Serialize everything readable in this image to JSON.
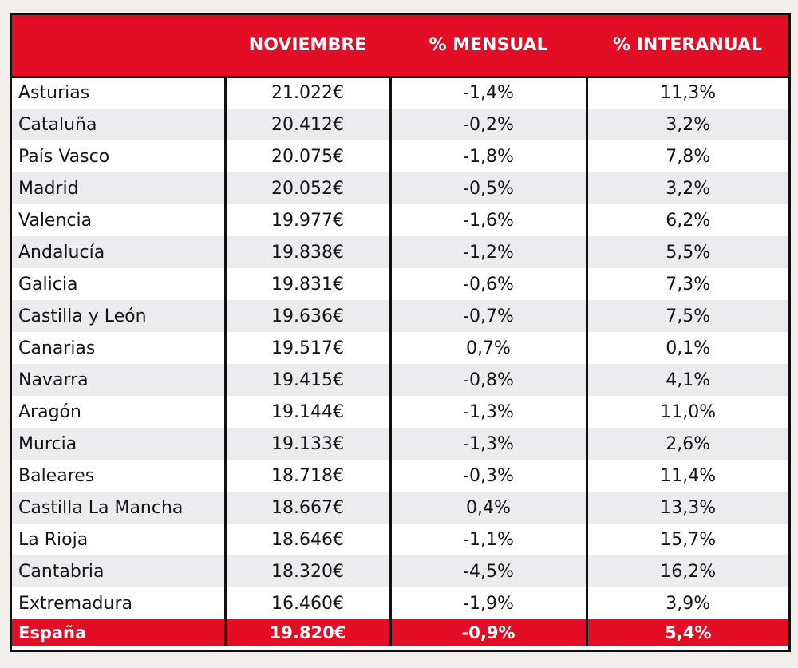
{
  "colors": {
    "accent": "#e30d25",
    "stripe": "#ececee",
    "border": "#111111"
  },
  "table": {
    "headers": [
      "",
      "NOVIEMBRE",
      "% MENSUAL",
      "% INTERANUAL"
    ],
    "rows": [
      [
        "Asturias",
        "21.022€",
        "-1,4%",
        "11,3%"
      ],
      [
        "Cataluña",
        "20.412€",
        "-0,2%",
        "3,2%"
      ],
      [
        "País Vasco",
        "20.075€",
        "-1,8%",
        "7,8%"
      ],
      [
        "Madrid",
        "20.052€",
        "-0,5%",
        "3,2%"
      ],
      [
        "Valencia",
        "19.977€",
        "-1,6%",
        "6,2%"
      ],
      [
        "Andalucía",
        "19.838€",
        "-1,2%",
        "5,5%"
      ],
      [
        "Galicia",
        "19.831€",
        "-0,6%",
        "7,3%"
      ],
      [
        "Castilla y León",
        "19.636€",
        "-0,7%",
        "7,5%"
      ],
      [
        "Canarias",
        "19.517€",
        "0,7%",
        "0,1%"
      ],
      [
        "Navarra",
        "19.415€",
        "-0,8%",
        "4,1%"
      ],
      [
        "Aragón",
        "19.144€",
        "-1,3%",
        "11,0%"
      ],
      [
        "Murcia",
        "19.133€",
        "-1,3%",
        "2,6%"
      ],
      [
        "Baleares",
        "18.718€",
        "-0,3%",
        "11,4%"
      ],
      [
        "Castilla La Mancha",
        "18.667€",
        "0,4%",
        "13,3%"
      ],
      [
        "La Rioja",
        "18.646€",
        "-1,1%",
        "15,7%"
      ],
      [
        "Cantabria",
        "18.320€",
        "-4,5%",
        "16,2%"
      ],
      [
        "Extremadura",
        "16.460€",
        "-1,9%",
        "3,9%"
      ]
    ],
    "total": [
      "España",
      "19.820€",
      "-0,9%",
      "5,4%"
    ]
  }
}
